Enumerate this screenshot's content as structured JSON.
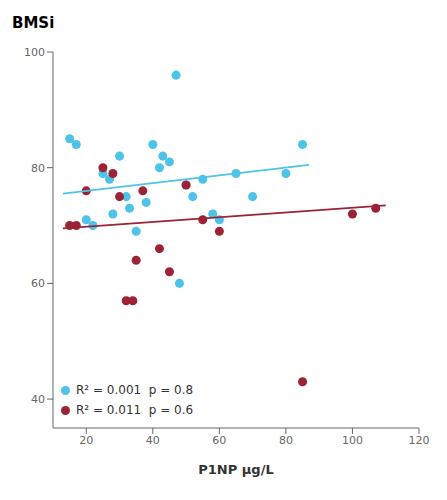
{
  "chart_data": {
    "type": "scatter",
    "ylabel": "BMSi",
    "xlabel": "P1NP μg/L",
    "xlim": [
      10,
      120
    ],
    "ylim": [
      35,
      100
    ],
    "xticks": [
      20,
      40,
      60,
      80,
      100,
      120
    ],
    "yticks": [
      40,
      60,
      80,
      100
    ],
    "grid": false,
    "legend": "lower left",
    "series": [
      {
        "name": "R² = 0.001  p = 0.8",
        "type": "scatter",
        "color": "#4DC3E8",
        "x": [
          15,
          17,
          20,
          22,
          25,
          27,
          28,
          30,
          32,
          33,
          35,
          38,
          40,
          42,
          43,
          45,
          47,
          48,
          50,
          52,
          55,
          58,
          60,
          65,
          70,
          80,
          85
        ],
        "values": [
          85,
          84,
          71,
          70,
          79,
          78,
          72,
          82,
          75,
          73,
          69,
          74,
          84,
          80,
          82,
          81,
          96,
          60,
          77,
          75,
          78,
          72,
          71,
          79,
          75,
          79,
          84
        ]
      },
      {
        "name": "R² = 0.011  p = 0.6",
        "type": "scatter",
        "color": "#9B2335",
        "x": [
          15,
          17,
          20,
          25,
          28,
          30,
          32,
          34,
          35,
          37,
          42,
          45,
          50,
          55,
          60,
          85,
          100,
          107
        ],
        "values": [
          70,
          70,
          76,
          80,
          79,
          75,
          57,
          57,
          64,
          76,
          66,
          62,
          77,
          71,
          69,
          43,
          72,
          73
        ]
      },
      {
        "type": "line",
        "color": "#4DC3E8",
        "x": [
          13,
          87
        ],
        "values": [
          75.5,
          80.5
        ]
      },
      {
        "type": "line",
        "color": "#9B2335",
        "x": [
          13,
          110
        ],
        "values": [
          69.5,
          73.5
        ]
      }
    ]
  }
}
